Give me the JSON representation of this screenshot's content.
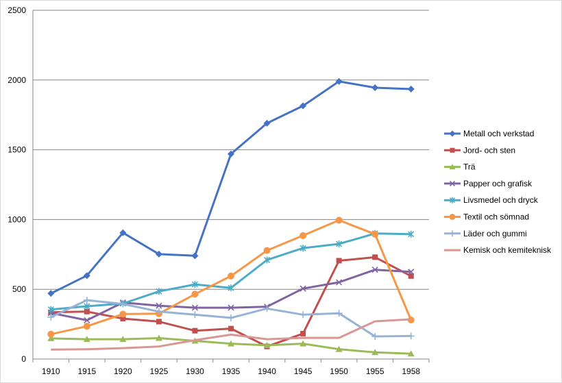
{
  "chart_data": {
    "type": "line",
    "title": "",
    "xlabel": "",
    "ylabel": "",
    "ylim": [
      0,
      2500
    ],
    "yticks": [
      0,
      500,
      1000,
      1500,
      2000,
      2500
    ],
    "grid": "horizontal",
    "legend": "right",
    "categories": [
      "1910",
      "1915",
      "1920",
      "1925",
      "1930",
      "1935",
      "1940",
      "1945",
      "1950",
      "1955",
      "1958"
    ],
    "series": [
      {
        "name": "Metall och verkstad",
        "color": "#4472C4",
        "marker": "diamond",
        "values": [
          470,
          598,
          905,
          752,
          740,
          1470,
          1690,
          1815,
          1990,
          1945,
          1935
        ]
      },
      {
        "name": "Jord- och sten",
        "color": "#C0504D",
        "marker": "square",
        "values": [
          335,
          340,
          290,
          268,
          203,
          218,
          90,
          182,
          705,
          730,
          595
        ]
      },
      {
        "name": "Trä",
        "color": "#9BBB59",
        "marker": "triangle",
        "values": [
          148,
          142,
          142,
          150,
          130,
          110,
          98,
          110,
          70,
          48,
          38
        ]
      },
      {
        "name": "Papper och grafisk",
        "color": "#8064A2",
        "marker": "x",
        "values": [
          330,
          278,
          405,
          382,
          368,
          368,
          375,
          505,
          550,
          640,
          625
        ]
      },
      {
        "name": "Livsmedel och dryck",
        "color": "#4BACC6",
        "marker": "star",
        "values": [
          355,
          378,
          398,
          485,
          535,
          510,
          710,
          795,
          825,
          900,
          895
        ]
      },
      {
        "name": "Textil och sömnad",
        "color": "#F79646",
        "marker": "circle",
        "values": [
          178,
          235,
          322,
          325,
          465,
          595,
          778,
          885,
          995,
          895,
          280
        ]
      },
      {
        "name": "Läder och gummi",
        "color": "#95B3D7",
        "marker": "plus",
        "values": [
          300,
          422,
          395,
          340,
          318,
          295,
          362,
          318,
          328,
          162,
          165
        ]
      },
      {
        "name": "Kemisk och kemiteknisk",
        "color": "#D99694",
        "marker": "none",
        "values": [
          68,
          70,
          78,
          90,
          135,
          175,
          142,
          152,
          152,
          270,
          285
        ]
      }
    ]
  }
}
